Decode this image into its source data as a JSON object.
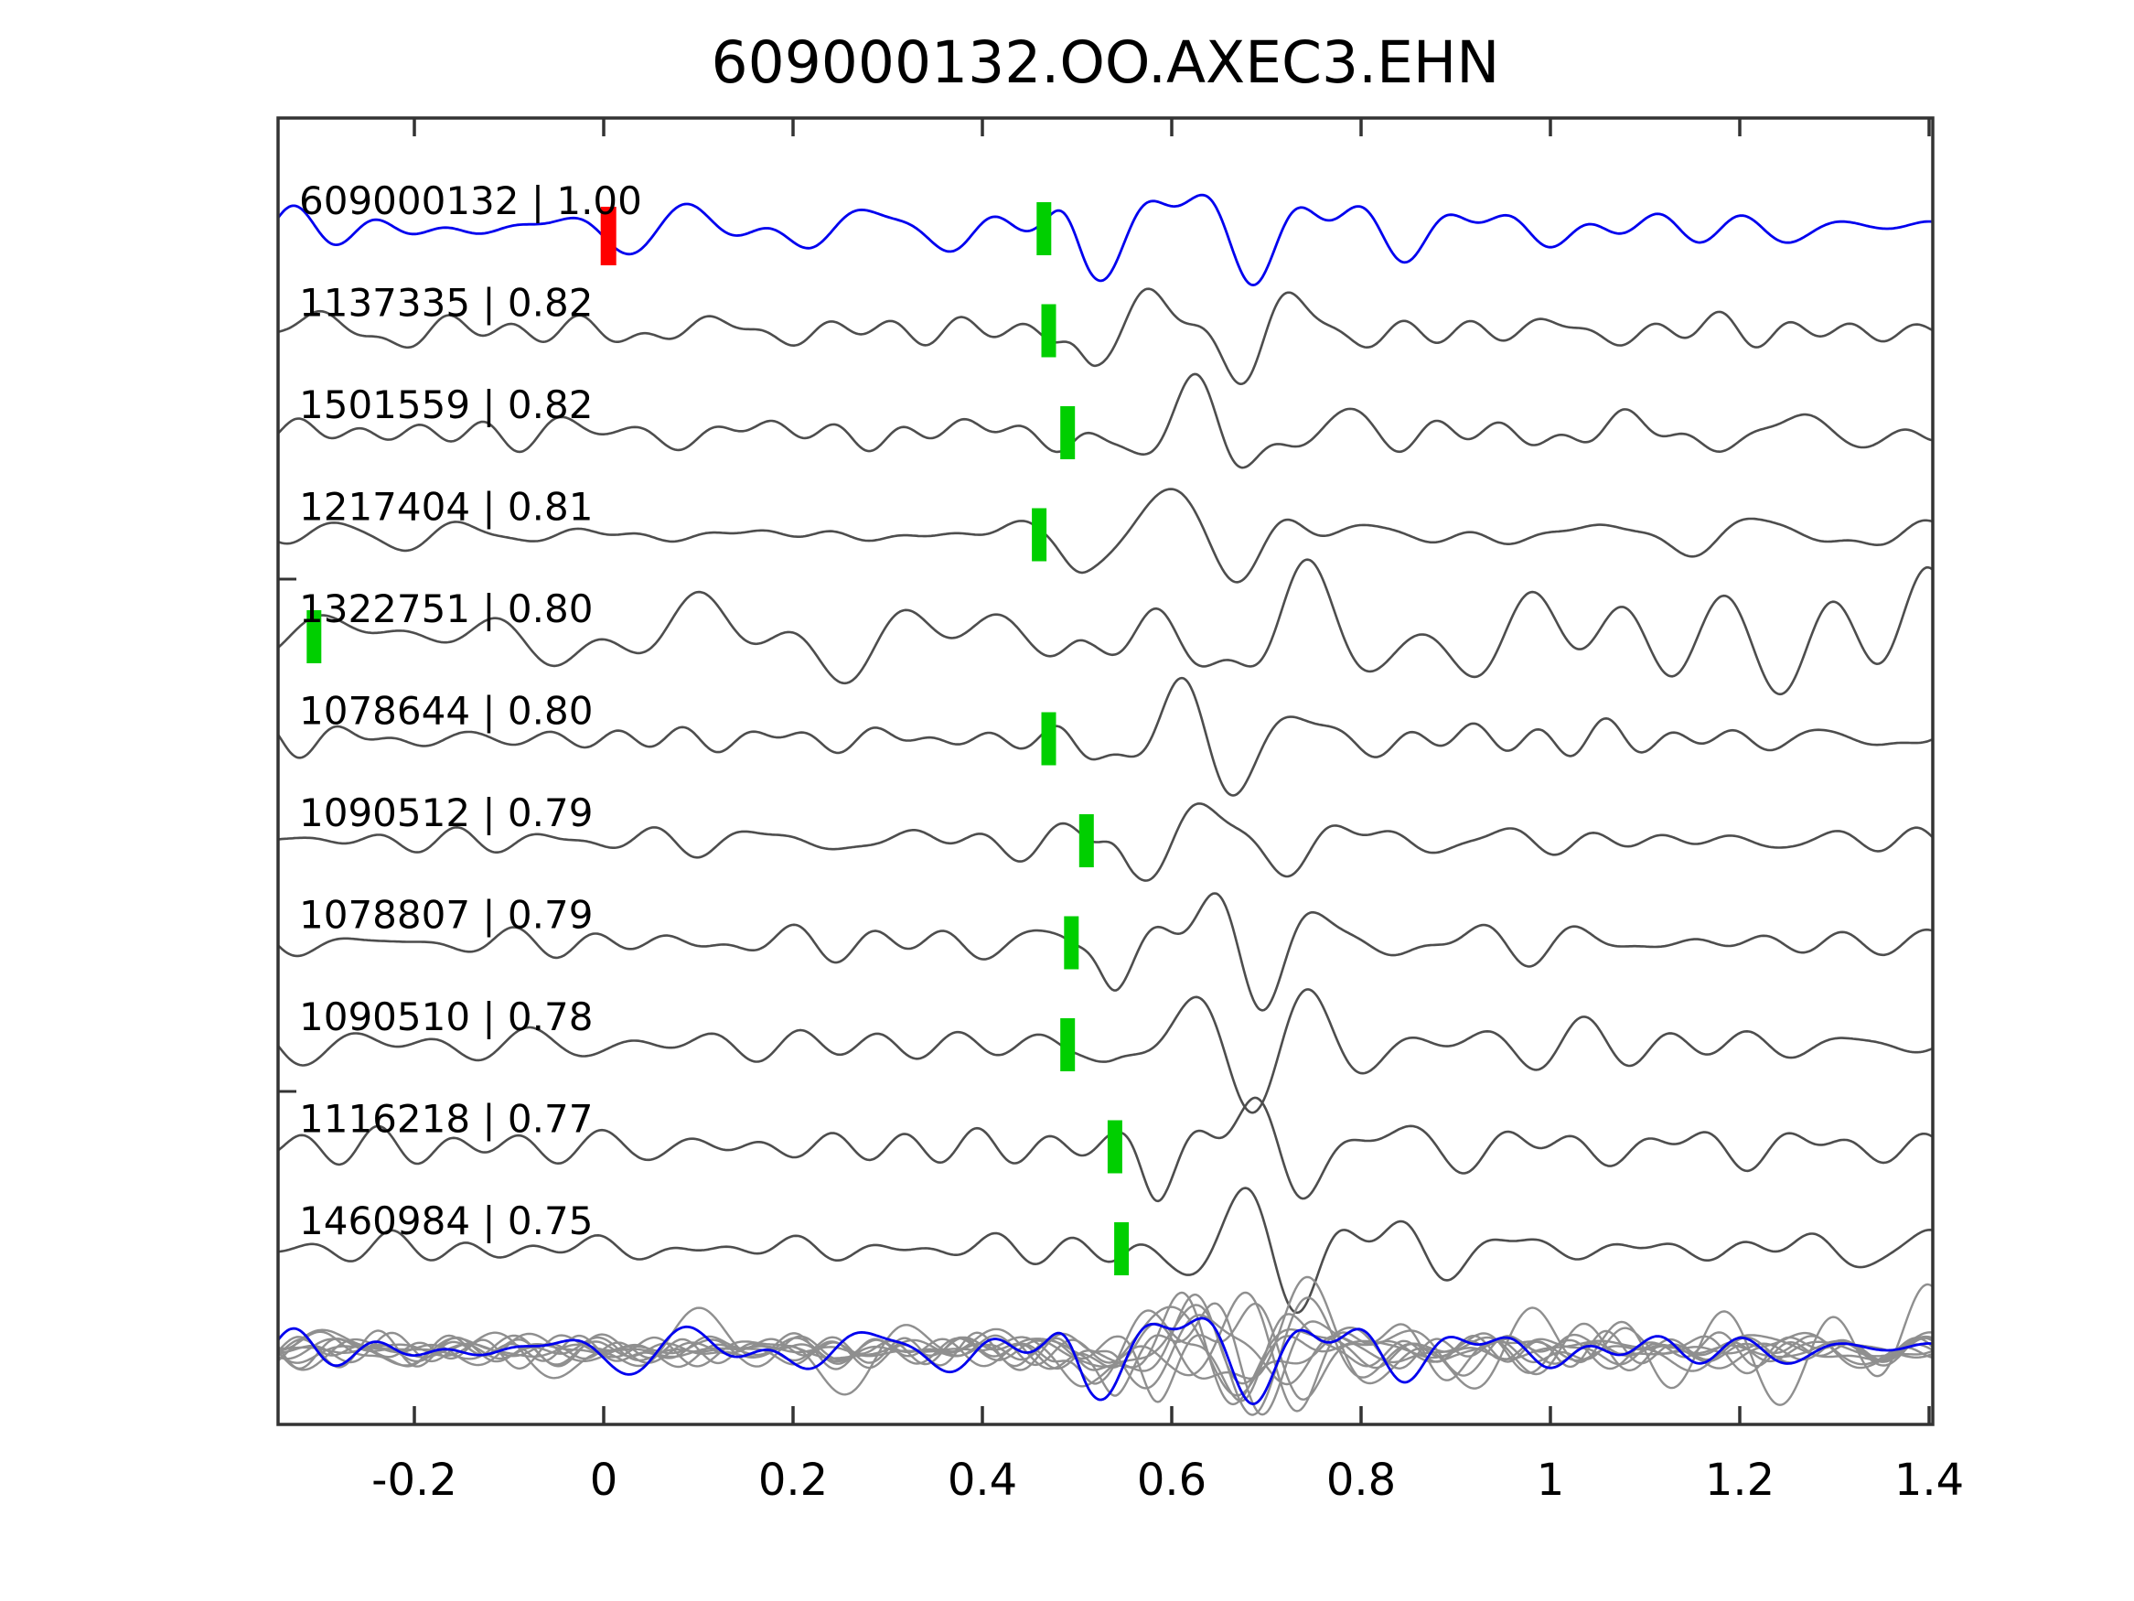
{
  "title": "609000132.OO.AXEC3.EHN",
  "colors": {
    "background": "#FFFFFF",
    "template_blue": "#0000EE",
    "trace_gray": "#4D4D4D",
    "overlay_gray": "#8F8F8F",
    "pick_green": "#00CF00",
    "origin_red": "#FF0000",
    "frame": "#333333",
    "text": "#000000"
  },
  "x_axis": {
    "tick_labels": [
      "-0.2",
      "0",
      "0.2",
      "0.4",
      "0.6",
      "0.8",
      "1",
      "1.2",
      "1.4"
    ],
    "tick_values": [
      -0.2,
      0,
      0.2,
      0.4,
      0.6,
      0.8,
      1,
      1.2,
      1.4
    ]
  },
  "chart_data": {
    "type": "line",
    "title": "609000132.OO.AXEC3.EHN",
    "xlabel": "",
    "ylabel": "",
    "xlim": [
      -0.345,
      1.405
    ],
    "grid": false,
    "legend": "none",
    "x_ticks": [
      -0.2,
      0,
      0.2,
      0.4,
      0.6,
      0.8,
      1,
      1.2,
      1.4
    ],
    "x_tick_labels": [
      "-0.2",
      "0",
      "0.2",
      "0.4",
      "0.6",
      "0.8",
      "1",
      "1.2",
      "1.4"
    ],
    "description": "Stacked seismic waveforms: template event (blue) and 10 matched detections (gray), each with a green phase-pick marker; red marker is template origin time; bottom row overlays all detections (gray) with the template (blue).",
    "traces": [
      {
        "id": "609000132",
        "correlation": "1.00",
        "label": "609000132 | 1.00",
        "role": "template",
        "color": "#0000EE",
        "noise_profile": "template",
        "pick_time": 0.465,
        "burst_time": 0.465,
        "markers": [
          {
            "t": 0.005,
            "color": "#FF0000",
            "kind": "template-origin"
          },
          {
            "t": 0.465,
            "color": "#00CF00",
            "kind": "pick"
          }
        ]
      },
      {
        "id": "1137335",
        "correlation": "0.82",
        "label": "1137335 | 0.82",
        "role": "detection",
        "color": "#4D4D4D",
        "noise_profile": "quiet",
        "pick_time": 0.47,
        "burst_time": 0.47,
        "markers": [
          {
            "t": 0.47,
            "color": "#00CF00",
            "kind": "pick"
          }
        ]
      },
      {
        "id": "1501559",
        "correlation": "0.82",
        "label": "1501559 | 0.82",
        "role": "detection",
        "color": "#4D4D4D",
        "noise_profile": "quiet",
        "pick_time": 0.49,
        "burst_time": 0.49,
        "markers": [
          {
            "t": 0.49,
            "color": "#00CF00",
            "kind": "pick"
          }
        ]
      },
      {
        "id": "1217404",
        "correlation": "0.81",
        "label": "1217404 | 0.81",
        "role": "detection",
        "color": "#4D4D4D",
        "noise_profile": "quiet",
        "pick_time": 0.46,
        "burst_time": 0.46,
        "markers": [
          {
            "t": 0.46,
            "color": "#00CF00",
            "kind": "pick"
          }
        ]
      },
      {
        "id": "1322751",
        "correlation": "0.80",
        "label": "1322751 | 0.80",
        "role": "detection",
        "color": "#4D4D4D",
        "noise_profile": "loud",
        "pick_time": -0.306,
        "burst_time": 0.465,
        "markers": [
          {
            "t": -0.306,
            "color": "#00CF00",
            "kind": "pick"
          }
        ]
      },
      {
        "id": "1078644",
        "correlation": "0.80",
        "label": "1078644 | 0.80",
        "role": "detection",
        "color": "#4D4D4D",
        "noise_profile": "quiet",
        "pick_time": 0.47,
        "burst_time": 0.47,
        "markers": [
          {
            "t": 0.47,
            "color": "#00CF00",
            "kind": "pick"
          }
        ]
      },
      {
        "id": "1090512",
        "correlation": "0.79",
        "label": "1090512 | 0.79",
        "role": "detection",
        "color": "#4D4D4D",
        "noise_profile": "quiet",
        "pick_time": 0.51,
        "burst_time": 0.51,
        "markers": [
          {
            "t": 0.51,
            "color": "#00CF00",
            "kind": "pick"
          }
        ]
      },
      {
        "id": "1078807",
        "correlation": "0.79",
        "label": "1078807 | 0.79",
        "role": "detection",
        "color": "#4D4D4D",
        "noise_profile": "quiet",
        "pick_time": 0.494,
        "burst_time": 0.494,
        "markers": [
          {
            "t": 0.494,
            "color": "#00CF00",
            "kind": "pick"
          }
        ]
      },
      {
        "id": "1090510",
        "correlation": "0.78",
        "label": "1090510 | 0.78",
        "role": "detection",
        "color": "#4D4D4D",
        "noise_profile": "quiet",
        "pick_time": 0.49,
        "burst_time": 0.49,
        "markers": [
          {
            "t": 0.49,
            "color": "#00CF00",
            "kind": "pick"
          }
        ]
      },
      {
        "id": "1116218",
        "correlation": "0.77",
        "label": "1116218 | 0.77",
        "role": "detection",
        "color": "#4D4D4D",
        "noise_profile": "quiet",
        "pick_time": 0.54,
        "burst_time": 0.54,
        "markers": [
          {
            "t": 0.54,
            "color": "#00CF00",
            "kind": "pick"
          }
        ]
      },
      {
        "id": "1460984",
        "correlation": "0.75",
        "label": "1460984 | 0.75",
        "role": "detection",
        "color": "#4D4D4D",
        "noise_profile": "quiet",
        "pick_time": 0.547,
        "burst_time": 0.547,
        "markers": [
          {
            "t": 0.547,
            "color": "#00CF00",
            "kind": "pick"
          }
        ]
      }
    ],
    "overlay_row": {
      "description": "All detection waveforms overlaid (gray) with template waveform (blue)",
      "gray": "#8F8F8F",
      "template": "#0000EE"
    }
  }
}
